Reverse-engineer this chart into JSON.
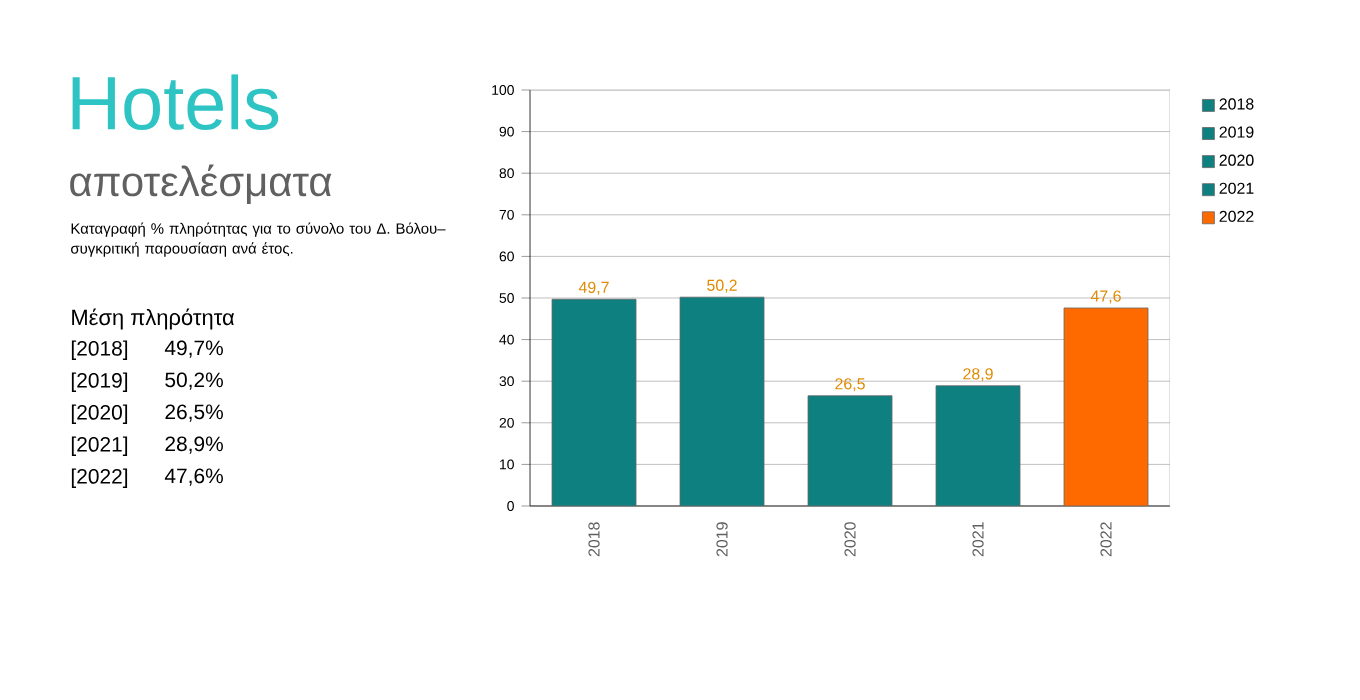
{
  "chart_data": {
    "type": "bar",
    "title": "Hotels",
    "subtitle": "αποτελέσματα",
    "annotations": [
      "Καταγραφή % πληρότητας για το σύνολο του Δ. Βόλου– συγκριτική παρουσίαση ανά έτος.",
      "Μέση πληρότητα",
      "[2018]",
      "49,7%",
      "[2019]",
      "50,2%",
      "[2020]",
      "26,5%",
      "[2021]",
      "28,9%",
      "[2022]",
      "47,6%"
    ],
    "categories": [
      "2018",
      "2019",
      "2020",
      "2021",
      "2022"
    ],
    "series": [
      {
        "name": "2018",
        "color": "#0e8080",
        "values": [
          49.7,
          null,
          null,
          null,
          null
        ],
        "value_labels": [
          "49,7",
          null,
          null,
          null,
          null
        ]
      },
      {
        "name": "2019",
        "color": "#0e8080",
        "values": [
          null,
          50.2,
          null,
          null,
          null
        ],
        "value_labels": [
          null,
          "50,2",
          null,
          null,
          null
        ]
      },
      {
        "name": "2020",
        "color": "#0e8080",
        "values": [
          null,
          null,
          26.5,
          null,
          null
        ],
        "value_labels": [
          null,
          null,
          "26,5",
          null,
          null
        ]
      },
      {
        "name": "2021",
        "color": "#0e8080",
        "values": [
          null,
          null,
          null,
          28.9,
          null
        ],
        "value_labels": [
          null,
          null,
          null,
          "28,9",
          null
        ]
      },
      {
        "name": "2022",
        "color": "#ff6a00",
        "values": [
          null,
          null,
          null,
          null,
          47.6
        ],
        "value_labels": [
          null,
          null,
          null,
          null,
          "47,6"
        ]
      }
    ],
    "ylim": [
      0,
      100
    ],
    "yticks": [
      0,
      10,
      20,
      30,
      40,
      50,
      60,
      70,
      80,
      90,
      100
    ],
    "grid": "y",
    "legend": "right"
  }
}
